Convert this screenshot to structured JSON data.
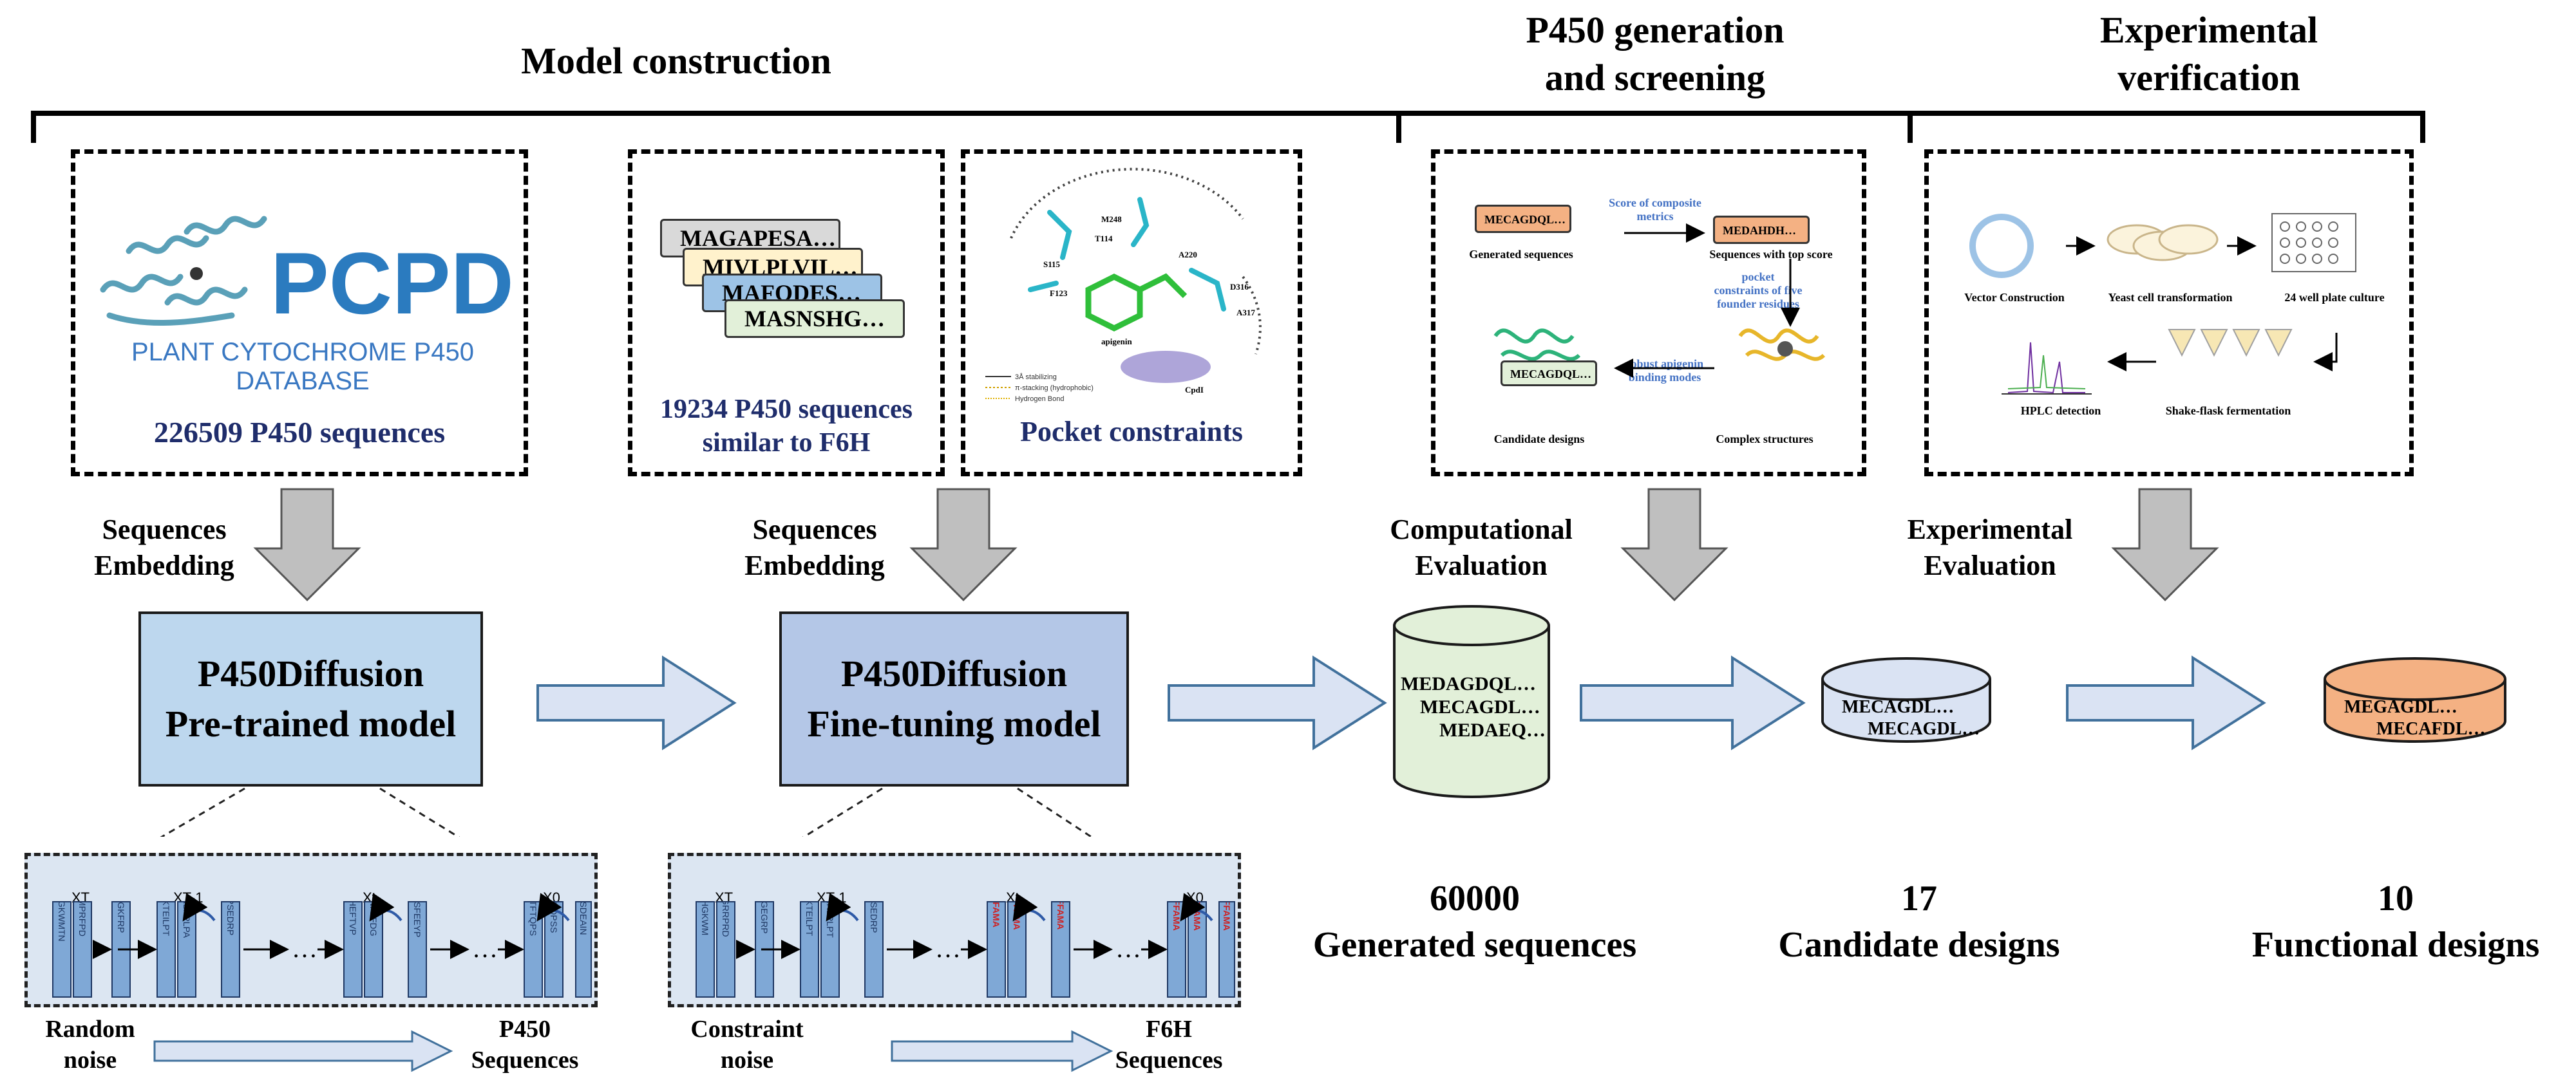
{
  "headers": {
    "model_construction": "Model construction",
    "generation_line1": "P450 generation",
    "generation_line2": "and screening",
    "verification_line1": "Experimental",
    "verification_line2": "verification"
  },
  "pcpd": {
    "logo_text": "PCPD",
    "subtitle": "PLANT CYTOCHROME P450 DATABASE",
    "caption": "226509 P450 sequences"
  },
  "similar": {
    "cards": [
      "MAGAPESA…",
      "MIVLPLVIL…",
      "MAFODES…",
      "MASNSHG…"
    ],
    "caption_line1": "19234 P450 sequences",
    "caption_line2": "similar to F6H"
  },
  "pocket": {
    "caption": "Pocket constraints",
    "residues": [
      "M248",
      "T114",
      "S115",
      "A220",
      "F123",
      "D316",
      "A317",
      "apigenin",
      "CpdI"
    ],
    "legend": [
      "3Å stabilizing",
      "π-stacking (hydrophobic)",
      "Hydrogen Bond"
    ]
  },
  "screening_panel": {
    "generated": "Generated sequences",
    "score_line1": "Score of composite",
    "score_line2": "metrics",
    "top_score": "Sequences with top score",
    "pocket_line1": "pocket",
    "pocket_line2": "constraints of five",
    "pocket_line3": "founder residues",
    "robust_line1": "robust apigenin",
    "robust_line2": "binding modes",
    "candidates": "Candidate designs",
    "complex": "Complex structures",
    "seq_tag": "MECAGDQL…",
    "seq_tag2": "MEDAHDH…"
  },
  "experiment_panel": {
    "vector": "Vector Construction",
    "yeast": "Yeast cell transformation",
    "plate": "24 well plate culture",
    "hplc": "HPLC detection",
    "shake": "Shake-flask fermentation"
  },
  "side_labels": {
    "embed1_line1": "Sequences",
    "embed1_line2": "Embedding",
    "embed2_line1": "Sequences",
    "embed2_line2": "Embedding",
    "comp_line1": "Computational",
    "comp_line2": "Evaluation",
    "exp_line1": "Experimental",
    "exp_line2": "Evaluation"
  },
  "models": {
    "pretrained_line1": "P450Diffusion",
    "pretrained_line2": "Pre-trained model",
    "finetune_line1": "P450Diffusion",
    "finetune_line2": "Fine-tuning model"
  },
  "cylinders": {
    "generated": [
      "MEDAGDQL…",
      "MECAGDL…",
      "MEDAEQ…"
    ],
    "candidate": [
      "MECAGDL…",
      "MECAGDL…"
    ],
    "functional": [
      "MEGAGDL…",
      "MECAFDL…"
    ]
  },
  "stats": {
    "generated_num": "60000",
    "generated_label": "Generated sequences",
    "candidate_num": "17",
    "candidate_label": "Candidate designs",
    "functional_num": "10",
    "functional_label": "Functional designs"
  },
  "diffusion1": {
    "x_labels": [
      "XT",
      "XT-1",
      "Xt",
      "X0"
    ],
    "bars": [
      "YCHGKWMTN",
      "KVMPRFPD",
      "YVGKFRP",
      "NKKTEILPT",
      "RPRLRPLPA",
      "YLPSEDRP",
      "ASHEFTVP",
      "VGNFFFDG",
      "LYKSFEEYP",
      "MKTFTQPS",
      "HTEOPSS",
      "MASDEAIN"
    ],
    "start_line1": "Random",
    "start_line2": "noise",
    "end_line1": "P450",
    "end_line2": "Sequences",
    "ellipsis": "…"
  },
  "diffusion2": {
    "x_labels": [
      "XT",
      "XT-1",
      "Xt",
      "X0"
    ],
    "bars": [
      "YRHGKWM",
      "KYGRRPRD",
      "YVGEGRP",
      "NKKTEILPT",
      "RPKRLPLPT",
      "VPSEDRP",
      "AFAMA",
      "EFFAMA",
      "LFFAMA",
      "MFFAMA",
      "MFFAMA",
      "MFFAMA"
    ],
    "start_line1": "Constraint",
    "start_line2": "noise",
    "end_line1": "F6H",
    "end_line2": "Sequences",
    "ellipsis": "…"
  },
  "colors": {
    "model1": "#bdd7ee",
    "model2": "#b4c7e7",
    "arrow_fill": "#dae3f3",
    "arrow_stroke": "#41719c",
    "cyl_green": "#e2f0d9",
    "cyl_blue": "#dae3f3",
    "cyl_orange": "#f4b183",
    "down_arrow": "#bfbfbf"
  }
}
